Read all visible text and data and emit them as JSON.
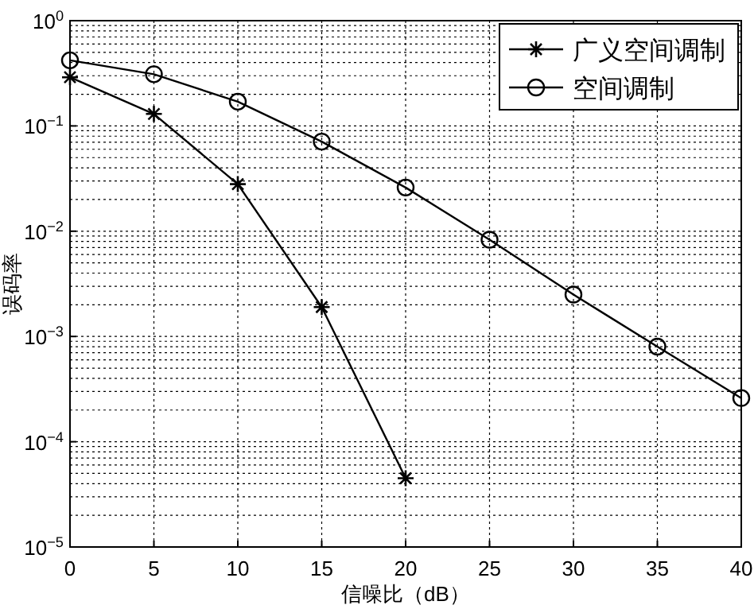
{
  "chart_data": {
    "type": "line",
    "xlabel": "信噪比（dB）",
    "ylabel": "误码率",
    "log": "y",
    "grid": true,
    "legend": "top right",
    "x": [
      0,
      5,
      10,
      15,
      20,
      25,
      30,
      35,
      40
    ],
    "xlim": [
      0,
      40
    ],
    "xticks": [
      0,
      5,
      10,
      15,
      20,
      25,
      30,
      35,
      40
    ],
    "ylim": [
      1e-05,
      1
    ],
    "yticks": [
      {
        "value": 1e-05,
        "label": "10$^{−5}$"
      },
      {
        "value": 0.0001,
        "label": "10$^{−4}$"
      },
      {
        "value": 0.001,
        "label": "10$^{−3}$"
      },
      {
        "value": 0.01,
        "label": "10$^{−2}$"
      },
      {
        "value": 0.1,
        "label": "10$^{−1}$"
      },
      {
        "value": 1,
        "label": "10$^{0}$"
      }
    ],
    "series": [
      {
        "name": "广义空间调制",
        "color": "#000000",
        "marker": "cross",
        "values": [
          0.29,
          0.13,
          0.028,
          0.0019,
          4.5e-05,
          null,
          null,
          null,
          null
        ]
      },
      {
        "name": "空间调制",
        "color": "#000000",
        "marker": "circle",
        "values": [
          0.42,
          0.31,
          0.17,
          0.071,
          0.026,
          0.0083,
          0.0025,
          0.0008,
          0.00026
        ]
      }
    ]
  }
}
